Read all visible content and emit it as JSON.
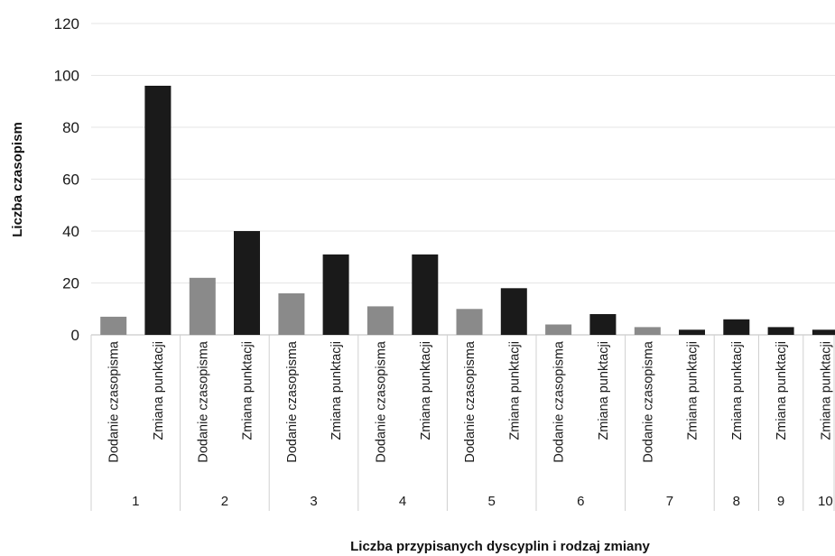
{
  "chart_data": {
    "type": "bar",
    "title": "",
    "xlabel": "Liczba przypisanych dyscyplin i rodzaj zmiany",
    "ylabel": "Liczba czasopism",
    "ylim": [
      0,
      120
    ],
    "yticks": [
      0,
      20,
      40,
      60,
      80,
      100,
      120
    ],
    "grid": true,
    "legend": "none",
    "series_colors": {
      "Dodanie czasopisma": "#8a8a8a",
      "Zmiana punktacji": "#1a1a1a"
    },
    "groups": [
      {
        "label": "1",
        "bars": [
          {
            "category": "Dodanie czasopisma",
            "value": 7
          },
          {
            "category": "Zmiana punktacji",
            "value": 96
          }
        ]
      },
      {
        "label": "2",
        "bars": [
          {
            "category": "Dodanie czasopisma",
            "value": 22
          },
          {
            "category": "Zmiana punktacji",
            "value": 40
          }
        ]
      },
      {
        "label": "3",
        "bars": [
          {
            "category": "Dodanie czasopisma",
            "value": 16
          },
          {
            "category": "Zmiana punktacji",
            "value": 31
          }
        ]
      },
      {
        "label": "4",
        "bars": [
          {
            "category": "Dodanie czasopisma",
            "value": 11
          },
          {
            "category": "Zmiana punktacji",
            "value": 31
          }
        ]
      },
      {
        "label": "5",
        "bars": [
          {
            "category": "Dodanie czasopisma",
            "value": 10
          },
          {
            "category": "Zmiana punktacji",
            "value": 18
          }
        ]
      },
      {
        "label": "6",
        "bars": [
          {
            "category": "Dodanie czasopisma",
            "value": 4
          },
          {
            "category": "Zmiana punktacji",
            "value": 8
          }
        ]
      },
      {
        "label": "7",
        "bars": [
          {
            "category": "Dodanie czasopisma",
            "value": 3
          },
          {
            "category": "Zmiana punktacji",
            "value": 2
          }
        ]
      },
      {
        "label": "8",
        "bars": [
          {
            "category": "Zmiana punktacji",
            "value": 6
          }
        ]
      },
      {
        "label": "9",
        "bars": [
          {
            "category": "Zmiana punktacji",
            "value": 3
          }
        ]
      },
      {
        "label": "10",
        "bars": [
          {
            "category": "Zmiana punktacji",
            "value": 2
          }
        ]
      }
    ]
  }
}
